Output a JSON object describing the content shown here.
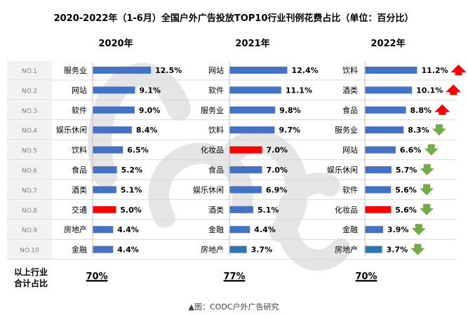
{
  "chart_data": {
    "type": "bar",
    "title": "2020-2022年（1-6月）全国户外广告投放TOP10行业刊例花费占比（单位：百分比）",
    "ranks": [
      "NO.1",
      "NO.2",
      "NO.3",
      "NO.4",
      "NO.5",
      "NO.6",
      "NO.7",
      "NO.8",
      "NO.9",
      "NO.10"
    ],
    "summary_label_line1": "以上行业",
    "summary_label_line2": "合计占比",
    "source": "▲图：CODC户外广告研究",
    "colors": {
      "bar": "#4472C4",
      "highlight_red": "#FF0000",
      "highlight_blue": "#2E75B6",
      "up_arrow": "#FF0000",
      "down_arrow": "#70AD47",
      "rank_bg": "#F2F2F2",
      "watermark": "#D0D0D0"
    },
    "watermark_text": "CODC",
    "panels": [
      {
        "year": "2020年",
        "total": "70%",
        "series": [
          {
            "category": "服务业",
            "value": 12.5,
            "label": "12.5%"
          },
          {
            "category": "网站",
            "value": 9.1,
            "label": "9.1%"
          },
          {
            "category": "软件",
            "value": 9.0,
            "label": "9.0%"
          },
          {
            "category": "娱乐休闲",
            "value": 8.4,
            "label": "8.4%"
          },
          {
            "category": "饮料",
            "value": 6.5,
            "label": "6.5%"
          },
          {
            "category": "食品",
            "value": 5.2,
            "label": "5.2%"
          },
          {
            "category": "酒类",
            "value": 5.1,
            "label": "5.1%"
          },
          {
            "category": "交通",
            "value": 5.0,
            "label": "5.0%",
            "highlight": "red"
          },
          {
            "category": "房地产",
            "value": 4.4,
            "label": "4.4%"
          },
          {
            "category": "金融",
            "value": 4.4,
            "label": "4.4%"
          }
        ]
      },
      {
        "year": "2021年",
        "total": "77%",
        "series": [
          {
            "category": "网站",
            "value": 12.4,
            "label": "12.4%"
          },
          {
            "category": "软件",
            "value": 11.1,
            "label": "11.1%"
          },
          {
            "category": "服务业",
            "value": 9.8,
            "label": "9.8%"
          },
          {
            "category": "饮料",
            "value": 9.7,
            "label": "9.7%"
          },
          {
            "category": "化妆品",
            "value": 7.0,
            "label": "7.0%",
            "highlight": "red"
          },
          {
            "category": "食品",
            "value": 7.0,
            "label": "7.0%"
          },
          {
            "category": "娱乐休闲",
            "value": 6.9,
            "label": "6.9%"
          },
          {
            "category": "酒类",
            "value": 5.1,
            "label": "5.1%"
          },
          {
            "category": "金融",
            "value": 4.4,
            "label": "4.4%"
          },
          {
            "category": "房地产",
            "value": 3.7,
            "label": "3.7%",
            "highlight": "blue"
          }
        ]
      },
      {
        "year": "2022年",
        "total": "70%",
        "series": [
          {
            "category": "饮料",
            "value": 11.2,
            "label": "11.2%",
            "trend": "up"
          },
          {
            "category": "酒类",
            "value": 10.1,
            "label": "10.1%",
            "trend": "up"
          },
          {
            "category": "食品",
            "value": 8.8,
            "label": "8.8%",
            "trend": "up"
          },
          {
            "category": "服务业",
            "value": 8.3,
            "label": "8.3%",
            "trend": "down"
          },
          {
            "category": "网站",
            "value": 6.6,
            "label": "6.6%",
            "trend": "down"
          },
          {
            "category": "娱乐休闲",
            "value": 5.7,
            "label": "5.7%",
            "trend": "down"
          },
          {
            "category": "软件",
            "value": 5.6,
            "label": "5.6%",
            "trend": "down"
          },
          {
            "category": "化妆品",
            "value": 5.6,
            "label": "5.6%",
            "trend": "down",
            "highlight": "red"
          },
          {
            "category": "金融",
            "value": 3.9,
            "label": "3.9%",
            "trend": "down"
          },
          {
            "category": "房地产",
            "value": 3.7,
            "label": "3.7%",
            "trend": "down",
            "highlight": "blue"
          }
        ]
      }
    ]
  }
}
